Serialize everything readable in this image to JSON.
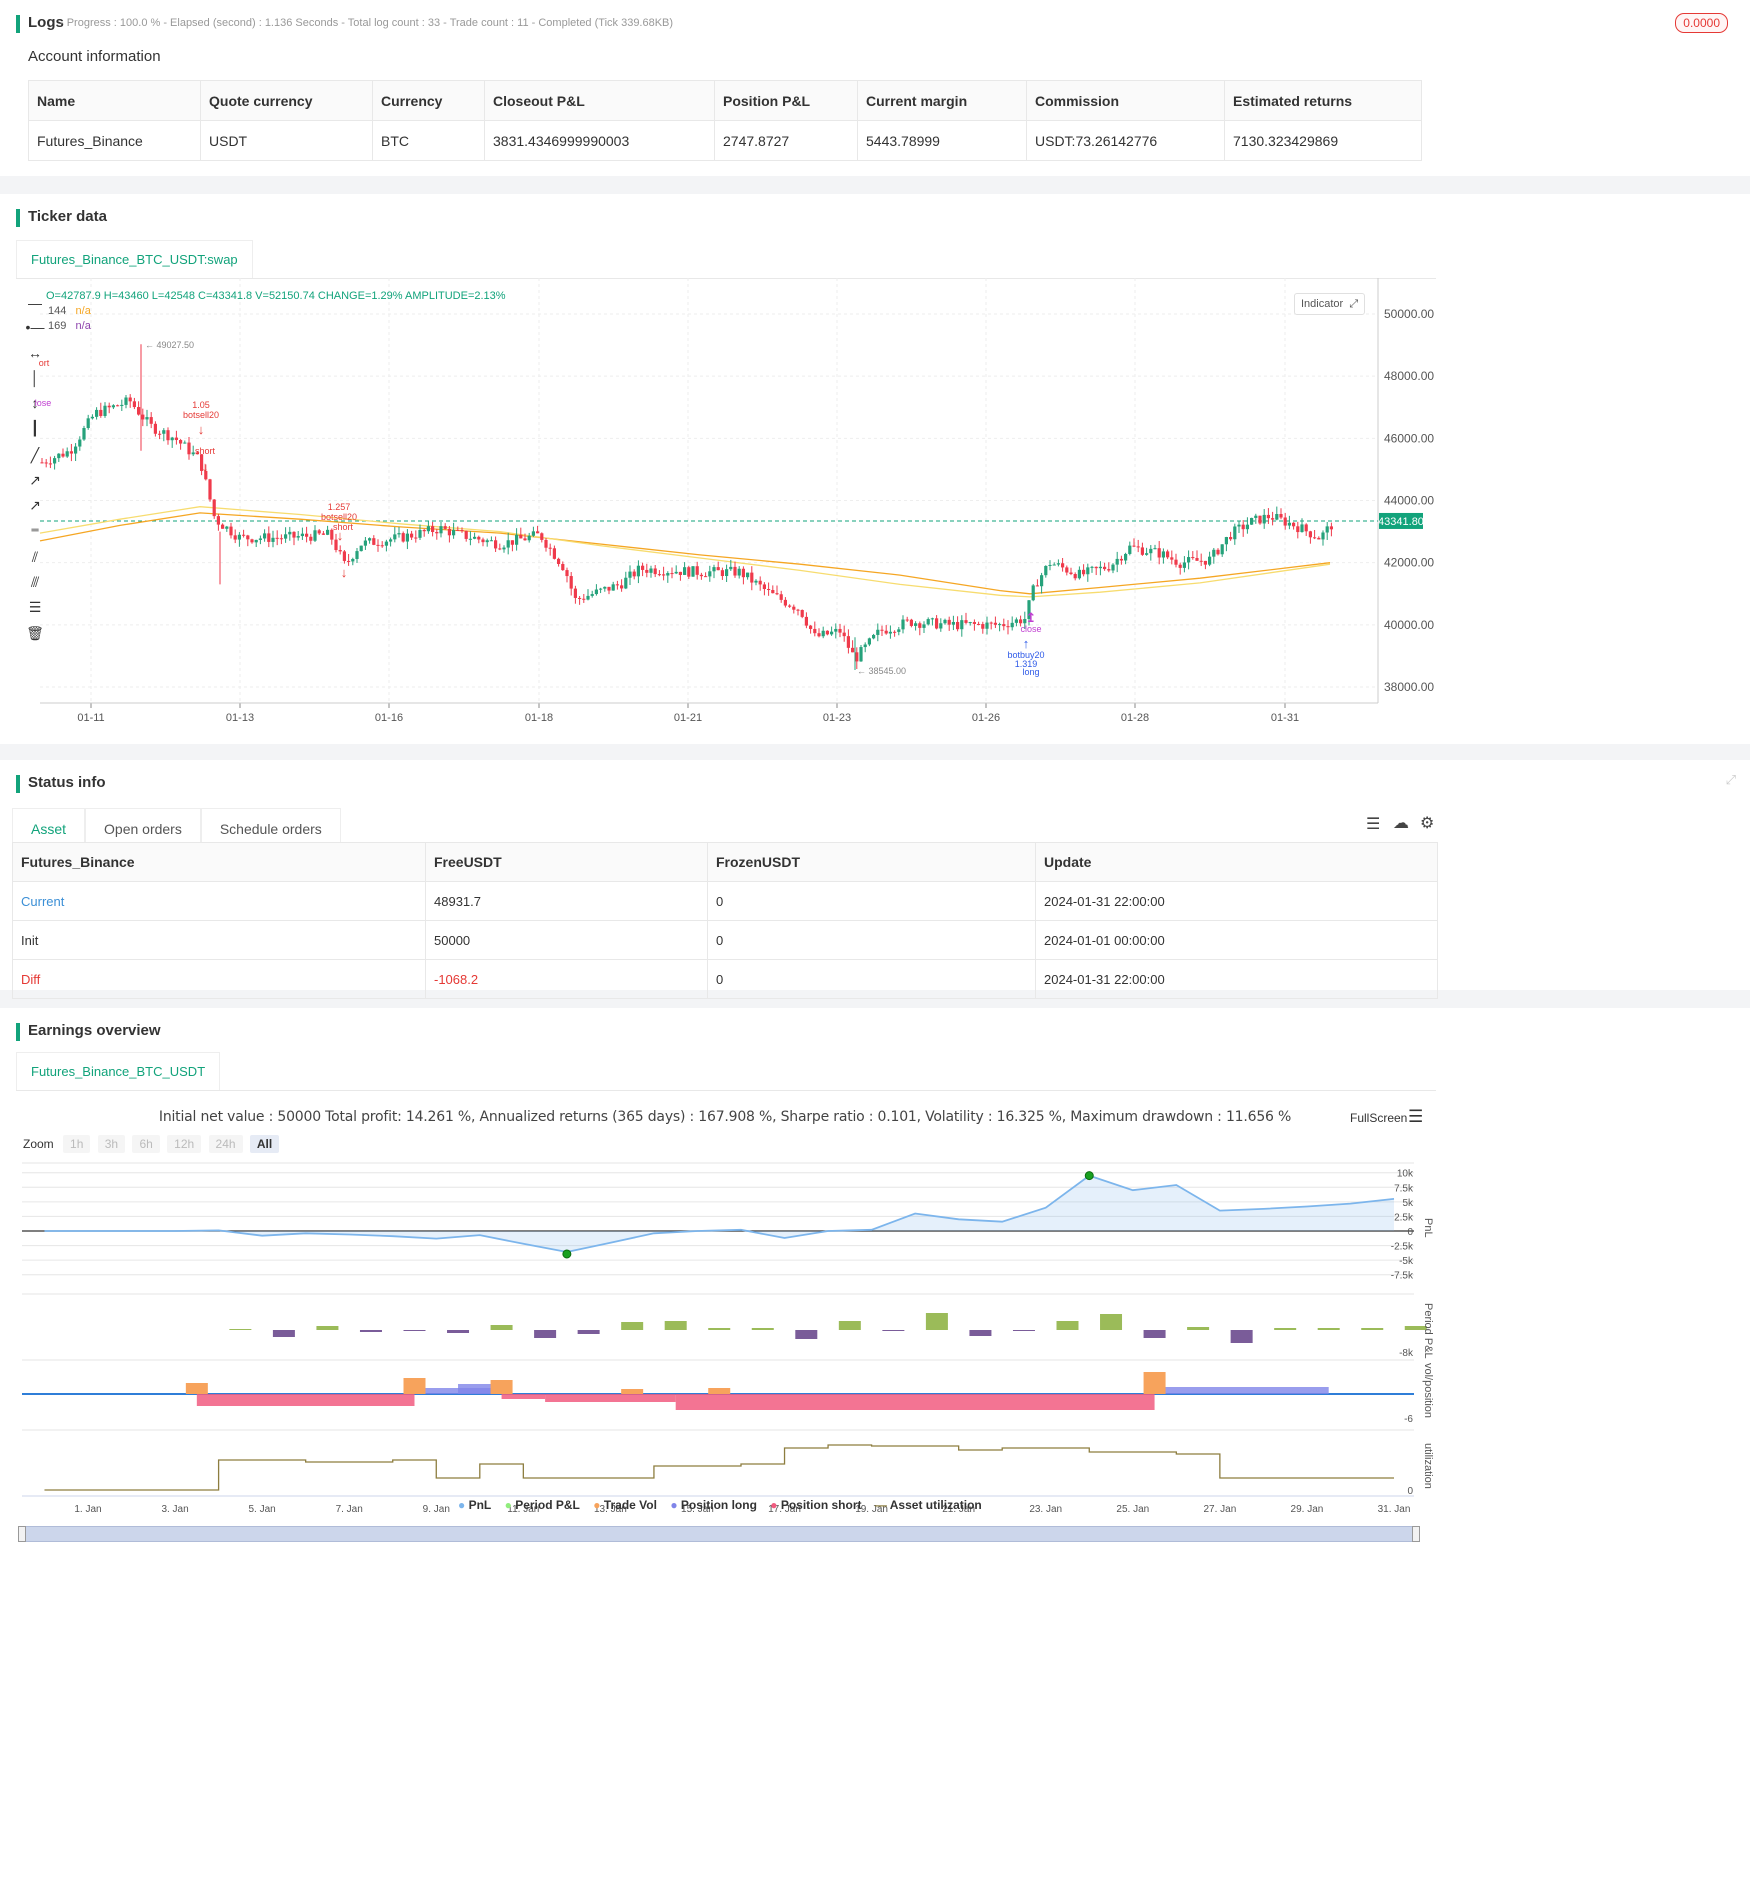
{
  "logs": {
    "title": "Logs",
    "status": "- Progress : 100.0 % - Elapsed (second) : 1.136  Seconds - Total log count : 33 - Trade count : 11 - Completed (Tick 339.68KB)",
    "badge": "0.0000"
  },
  "account": {
    "title": "Account information",
    "headers": [
      "Name",
      "Quote currency",
      "Currency",
      "Closeout P&L",
      "Position P&L",
      "Current margin",
      "Commission",
      "Estimated returns"
    ],
    "row": [
      "Futures_Binance",
      "USDT",
      "BTC",
      "3831.4346999990003",
      "2747.8727",
      "5443.78999",
      "USDT:73.26142776",
      "7130.323429869"
    ]
  },
  "ticker": {
    "title": "Ticker data",
    "tab": "Futures_Binance_BTC_USDT:swap",
    "ohlc": "O=42787.9 H=43460 L=42548 C=43341.8 V=52150.74 CHANGE=1.29% AMPLITUDE=2.13%",
    "ma1_label": "144",
    "ma1_value": "n/a",
    "ma2_label": "169",
    "ma2_value": "n/a",
    "indicator_btn": "Indicator",
    "last_price": "43341.80",
    "high_label": "49027.50",
    "low_label": "38545.00",
    "y_ticks": [
      "50000.00",
      "48000.00",
      "46000.00",
      "44000.00",
      "42000.00",
      "40000.00",
      "38000.00"
    ],
    "x_ticks": [
      "01-11",
      "01-13",
      "01-16",
      "01-18",
      "01-21",
      "01-23",
      "01-26",
      "01-28",
      "01-31"
    ],
    "annotations": {
      "a1": "ort",
      "a2": "lose",
      "b1": "1.05",
      "b2": "botsell20",
      "b3": "short",
      "c1": "1.257",
      "c2": "botsell20",
      "c3": "short",
      "d1": "close",
      "d2": "botbuy20",
      "d3": "1.319",
      "d4": "long"
    }
  },
  "status": {
    "title": "Status info",
    "tabs": [
      "Asset",
      "Open orders",
      "Schedule orders"
    ],
    "headers": [
      "Futures_Binance",
      "FreeUSDT",
      "FrozenUSDT",
      "Update"
    ],
    "rows": [
      [
        "Current",
        "48931.7",
        "0",
        "2024-01-31 22:00:00"
      ],
      [
        "Init",
        "50000",
        "0",
        "2024-01-01 00:00:00"
      ],
      [
        "Diff",
        "-1068.2",
        "0",
        "2024-01-31 22:00:00"
      ]
    ]
  },
  "earnings": {
    "title": "Earnings overview",
    "tab": "Futures_Binance_BTC_USDT",
    "summary": "Initial net value : 50000 Total profit: 14.261 %, Annualized returns (365 days) : 167.908 %, Sharpe ratio : 0.101, Volatility : 16.325 %, Maximum drawdown : 11.656 %",
    "fullscreen": "FullScreen",
    "zoom_label": "Zoom",
    "zoom_options": [
      "1h",
      "3h",
      "6h",
      "12h",
      "24h",
      "All"
    ],
    "pnl_ticks": [
      "10k",
      "7.5k",
      "5k",
      "2.5k",
      "0",
      "-2.5k",
      "-5k",
      "-7.5k"
    ],
    "pnl_axis": "PnL",
    "period_axis": "Period P&L",
    "period_tick": "-8k",
    "vol_axis": "vol/position",
    "vol_tick": "-6",
    "util_axis": "utilization",
    "util_tick": "0",
    "x_ticks": [
      "1. Jan",
      "3. Jan",
      "5. Jan",
      "7. Jan",
      "9. Jan",
      "11. Jan",
      "13. Jan",
      "15. Jan",
      "17. Jan",
      "19. Jan",
      "21. Jan",
      "23. Jan",
      "25. Jan",
      "27. Jan",
      "29. Jan",
      "31. Jan"
    ],
    "legend": [
      "PnL",
      "Period P&L",
      "Trade Vol",
      "Position long",
      "Position short",
      "Asset utilization"
    ],
    "colors": {
      "pnl": "#7cb5ec",
      "period": "#90ed7d",
      "vol": "#f7a35c",
      "long": "#8085e9",
      "short": "#f15c80",
      "util": "#8d7d3f"
    }
  }
}
